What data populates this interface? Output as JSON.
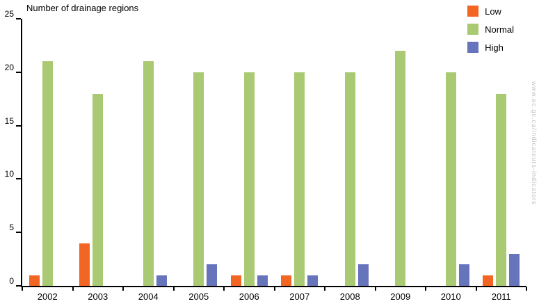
{
  "title": "Number of drainage regions",
  "watermark": "www.ec.gc.ca/indicateurs-indicators",
  "colors": {
    "low": "#f26522",
    "normal": "#a9c972",
    "high": "#6674bc",
    "axis": "#000000",
    "watermark_text": "#bfbfbf"
  },
  "legend": [
    {
      "label": "Low",
      "color": "#f26522"
    },
    {
      "label": "Normal",
      "color": "#a9c972"
    },
    {
      "label": "High",
      "color": "#6674bc"
    }
  ],
  "chart_data": {
    "type": "bar",
    "title": "Number of drainage regions",
    "categories": [
      "2002",
      "2003",
      "2004",
      "2005",
      "2006",
      "2007",
      "2008",
      "2009",
      "2010",
      "2011"
    ],
    "series": [
      {
        "name": "Low",
        "color": "#f26522",
        "values": [
          1,
          4,
          0,
          0,
          1,
          1,
          0,
          0,
          0,
          1
        ]
      },
      {
        "name": "Normal",
        "color": "#a9c972",
        "values": [
          21,
          18,
          21,
          20,
          20,
          20,
          20,
          22,
          20,
          18
        ]
      },
      {
        "name": "High",
        "color": "#6674bc",
        "values": [
          0,
          0,
          1,
          2,
          1,
          1,
          2,
          0,
          2,
          3
        ]
      }
    ],
    "xlabel": "",
    "ylabel": "",
    "ylim": [
      0,
      25
    ],
    "yticks": [
      0,
      5,
      10,
      15,
      20,
      25
    ],
    "grid": false,
    "legend_position": "top-right"
  }
}
